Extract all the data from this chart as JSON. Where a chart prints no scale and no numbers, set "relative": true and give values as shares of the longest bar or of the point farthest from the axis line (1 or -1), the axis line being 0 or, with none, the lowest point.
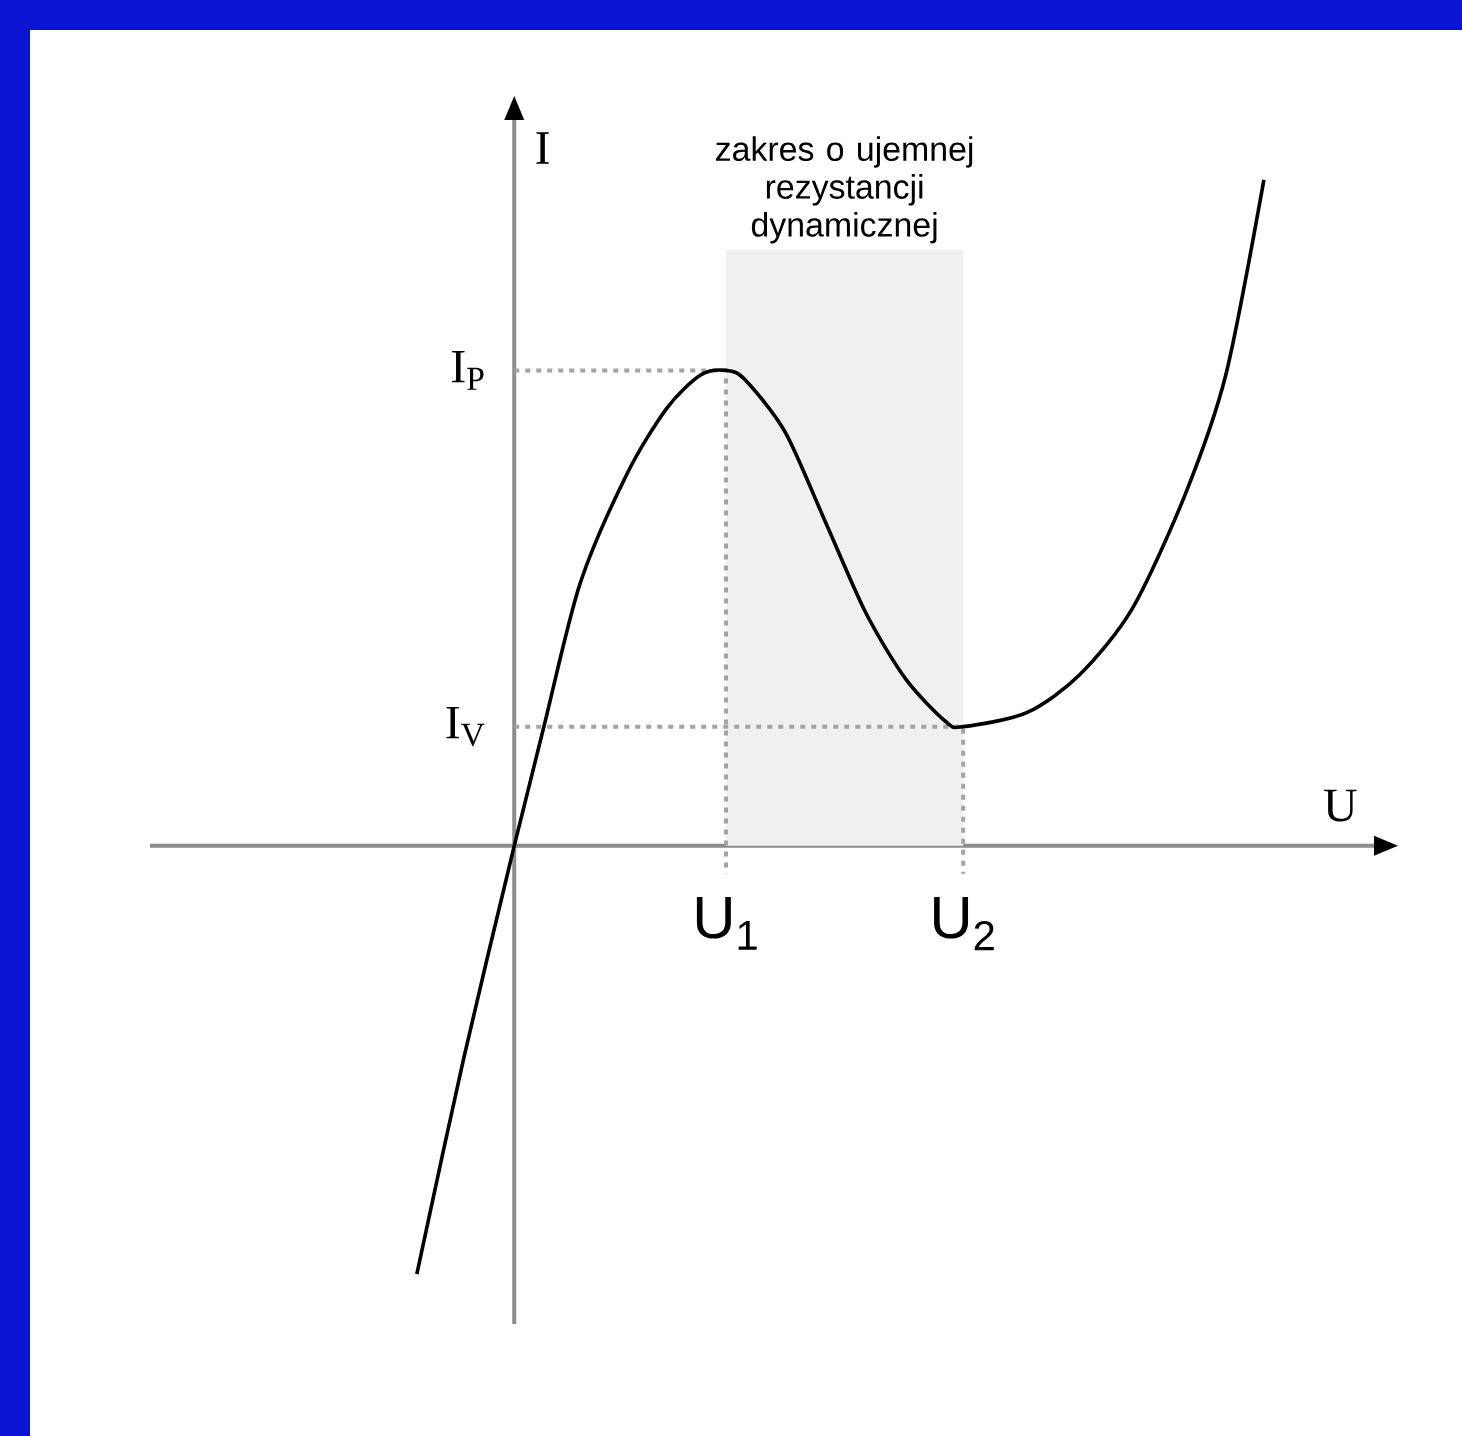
{
  "chart_data": {
    "type": "line",
    "xlabel": "U",
    "ylabel": "I",
    "relative": true,
    "x": [
      -0.46,
      -0.24,
      0,
      0.14,
      0.31,
      0.53,
      0.72,
      0.88,
      1.0,
      1.09,
      1.28,
      1.47,
      1.66,
      1.85,
      2.04,
      2.12,
      2.42,
      2.67,
      2.92,
      3.17,
      3.36,
      3.54
    ],
    "values": [
      -0.643,
      -0.321,
      0,
      0.179,
      0.393,
      0.557,
      0.657,
      0.707,
      0.714,
      0.7,
      0.621,
      0.486,
      0.35,
      0.25,
      0.186,
      0.179,
      0.2,
      0.257,
      0.357,
      0.529,
      0.707,
      1.0
    ],
    "color": "#000000",
    "line_style": "solid",
    "xlim": [
      -1.72,
      4.06
    ],
    "xticks": [
      {
        "value": 1.0,
        "label": "U$_{1}$"
      },
      {
        "value": 2.12,
        "label": "U$_{2}$"
      }
    ],
    "annotations": [
      "I$_{P}$",
      "I$_{V}$"
    ],
    "bands": [
      {
        "axis": "x",
        "from": 1.0,
        "to": 2.12,
        "label": "zakres o ujemnej rezystancji dynamicznej",
        "color": "#f0f0f0"
      }
    ]
  }
}
